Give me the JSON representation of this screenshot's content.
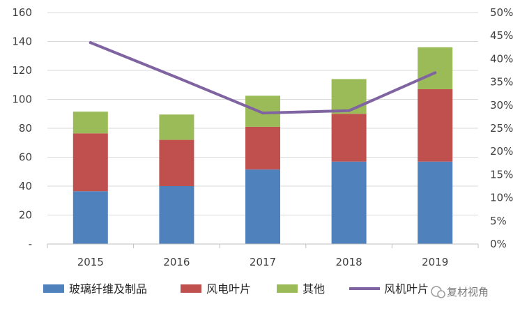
{
  "chart_data": {
    "type": "bar",
    "stacked": true,
    "categories": [
      "2015",
      "2016",
      "2017",
      "2018",
      "2019"
    ],
    "series": [
      {
        "name": "玻璃纤维及制品",
        "values": [
          36.5,
          40,
          51.5,
          57,
          57
        ],
        "color": "#4f81bd"
      },
      {
        "name": "风电叶片",
        "values": [
          40,
          32,
          29.5,
          33,
          50
        ],
        "color": "#c0504d"
      },
      {
        "name": "其他",
        "values": [
          15,
          17.5,
          21.5,
          24,
          29
        ],
        "color": "#9bbb59"
      }
    ],
    "line_series": {
      "name": "风机叶片",
      "axis": "right",
      "values": [
        43.5,
        36,
        28.3,
        28.8,
        37
      ],
      "color": "#8064a2"
    },
    "y_left": {
      "min": 0,
      "max": 160,
      "step": 20,
      "tick_labels": [
        "-",
        "20",
        "40",
        "60",
        "80",
        "100",
        "120",
        "140",
        "160"
      ]
    },
    "y_right": {
      "min": 0,
      "max": 50,
      "step": 5,
      "tick_labels": [
        "0%",
        "5%",
        "10%",
        "15%",
        "20%",
        "25%",
        "30%",
        "35%",
        "40%",
        "45%",
        "50%"
      ]
    },
    "grid": true,
    "legend_position": "bottom"
  },
  "watermark": "复材视角"
}
